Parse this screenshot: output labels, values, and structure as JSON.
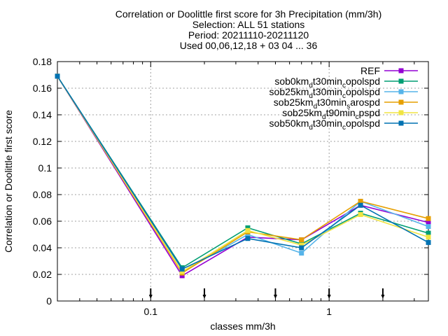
{
  "chart_data": {
    "type": "line",
    "title_lines": [
      "Correlation or Doolittle first score  for 3h Precipitation (mm/3h)",
      "Selection: ALL      51 stations",
      "Period: 20211110-20211120",
      "Used 00,06,12,18 + 03 04 ... 36"
    ],
    "xlabel": "classes mm/3h",
    "ylabel": "Correlation or Doolittle first score",
    "x_scale": "log",
    "xlim": [
      0.03,
      3.6
    ],
    "ylim": [
      0,
      0.18
    ],
    "grid": true,
    "legend_position": "top-right",
    "x_ticks": [
      {
        "value": 0.1,
        "label": "0.1"
      },
      {
        "value": 1,
        "label": "1"
      }
    ],
    "y_ticks": [
      {
        "value": 0,
        "label": "0"
      },
      {
        "value": 0.02,
        "label": "0.02"
      },
      {
        "value": 0.04,
        "label": "0.04"
      },
      {
        "value": 0.06,
        "label": "0.06"
      },
      {
        "value": 0.08,
        "label": "0.08"
      },
      {
        "value": 0.1,
        "label": "0.1"
      },
      {
        "value": 0.12,
        "label": "0.12"
      },
      {
        "value": 0.14,
        "label": "0.14"
      },
      {
        "value": 0.16,
        "label": "0.16"
      },
      {
        "value": 0.18,
        "label": "0.18"
      }
    ],
    "class_bounds": [
      0.1,
      0.2,
      0.5,
      1,
      2
    ],
    "x": [
      0.03,
      0.15,
      0.35,
      0.7,
      1.5,
      3.6
    ],
    "series": [
      {
        "name": "REF",
        "legend": {
          "base": "REF",
          "sub": "",
          "rest": ""
        },
        "color": "#9400d3",
        "marker": "square",
        "values": [
          0.169,
          0.019,
          0.048,
          0.046,
          0.072,
          0.059
        ]
      },
      {
        "name": "sob0km_d t30min_c opolspd",
        "legend": {
          "base": "sob0km",
          "sub": "d",
          "rest": "t30min",
          "sub2": "c",
          "rest2": "opolspd"
        },
        "color": "#009e73",
        "marker": "square",
        "values": [
          0.169,
          0.025,
          0.055,
          0.043,
          0.066,
          0.051
        ]
      },
      {
        "name": "sob25km_d t30min_c opolspd",
        "legend": {
          "base": "sob25km",
          "sub": "d",
          "rest": "t30min",
          "sub2": "c",
          "rest2": "opolspd"
        },
        "color": "#56b4e9",
        "marker": "square",
        "values": [
          0.169,
          0.022,
          0.05,
          0.036,
          0.075,
          0.056
        ]
      },
      {
        "name": "sob25km_d t30min_s arospd",
        "legend": {
          "base": "sob25km",
          "sub": "d",
          "rest": "t30min",
          "sub2": "s",
          "rest2": "arospd"
        },
        "color": "#e69f00",
        "marker": "square",
        "values": [
          0.169,
          0.021,
          0.052,
          0.046,
          0.075,
          0.062
        ]
      },
      {
        "name": "sob25km_d t90min_c pspd",
        "legend": {
          "base": "sob25km",
          "sub": "d",
          "rest": "t90min",
          "sub2": "c",
          "rest2": "pspd"
        },
        "color": "#f0e442",
        "marker": "square",
        "values": [
          0.169,
          0.022,
          0.053,
          0.042,
          0.065,
          0.048
        ]
      },
      {
        "name": "sob50km_d t30min_c opolspd",
        "legend": {
          "base": "sob50km",
          "sub": "d",
          "rest": "t30min",
          "sub2": "c",
          "rest2": "opolspd"
        },
        "color": "#0072b2",
        "marker": "square",
        "values": [
          0.169,
          0.024,
          0.047,
          0.04,
          0.072,
          0.044
        ]
      }
    ]
  }
}
